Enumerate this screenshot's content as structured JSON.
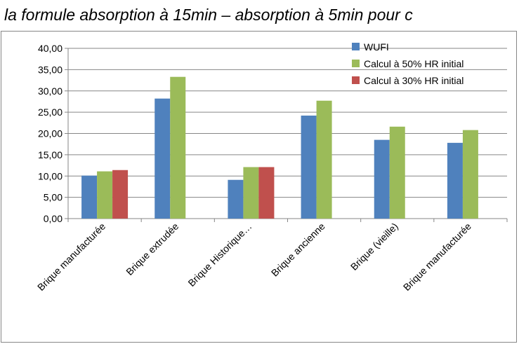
{
  "caption": "la formule absorption à 15min – absorption à 5min pour c",
  "chart_data": {
    "type": "bar",
    "categories": [
      "Brique manufacturée",
      "Brique extrudée",
      "Brique Historique…",
      "Brique ancienne",
      "Brique (vieille)",
      "Brique manufacturée"
    ],
    "series": [
      {
        "name": "WUFI",
        "color": "#4F81BD",
        "values": [
          10.1,
          28.2,
          9.1,
          24.2,
          18.5,
          17.8
        ]
      },
      {
        "name": "Calcul à 50% HR initial",
        "color": "#9BBB59",
        "values": [
          11.1,
          33.3,
          12.1,
          27.7,
          21.6,
          20.8
        ]
      },
      {
        "name": "Calcul à 30% HR initial",
        "color": "#C0504D",
        "values": [
          11.4,
          null,
          12.1,
          null,
          null,
          null
        ]
      }
    ],
    "yticks": [
      "0,00",
      "5,00",
      "10,00",
      "15,00",
      "20,00",
      "25,00",
      "30,00",
      "35,00",
      "40,00"
    ],
    "ylim": [
      0,
      40
    ],
    "grid": true,
    "legend": "top-right"
  }
}
